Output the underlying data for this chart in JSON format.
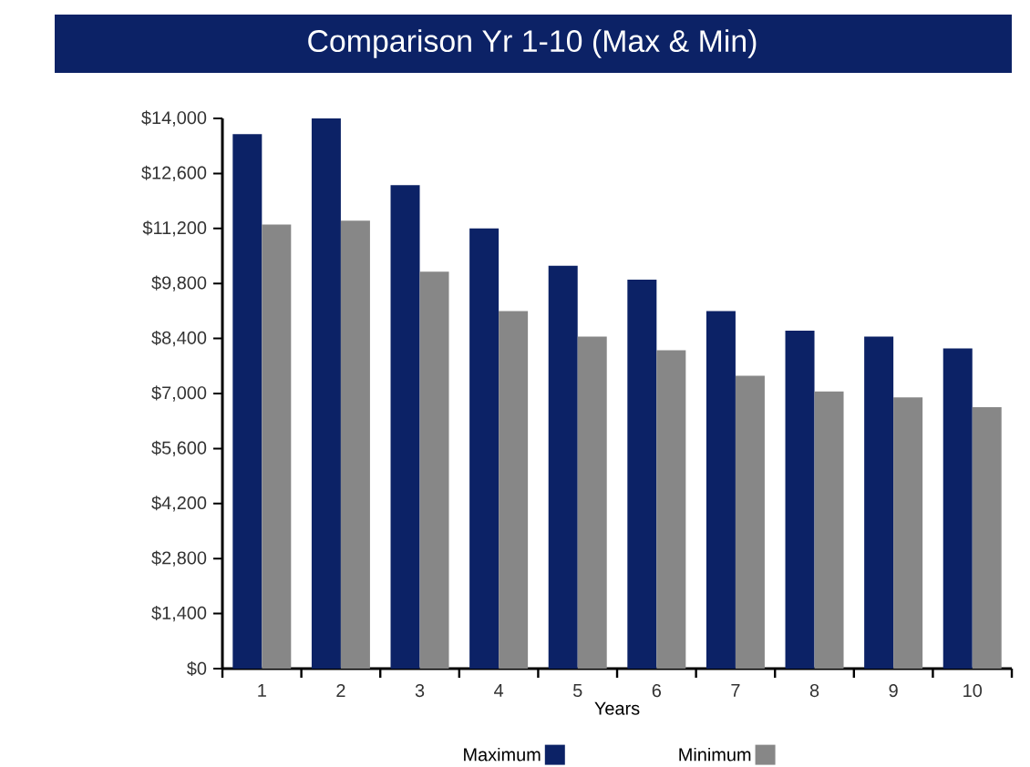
{
  "chart_data": {
    "type": "bar",
    "title": "Comparison Yr 1-10 (Max & Min)",
    "xlabel": "Years",
    "categories": [
      "1",
      "2",
      "3",
      "4",
      "5",
      "6",
      "7",
      "8",
      "9",
      "10"
    ],
    "series": [
      {
        "name": "Maximum",
        "color": "#0c2266",
        "values": [
          13600,
          14000,
          12300,
          11200,
          10250,
          9900,
          9100,
          8600,
          8450,
          8150
        ]
      },
      {
        "name": "Minimum",
        "color": "#878787",
        "values": [
          11300,
          11400,
          10100,
          9100,
          8450,
          8100,
          7450,
          7050,
          6900,
          6650
        ]
      }
    ],
    "ylim": [
      0,
      14000
    ],
    "yticks": [
      {
        "value": 0,
        "label": "$0"
      },
      {
        "value": 1400,
        "label": "$1,400"
      },
      {
        "value": 2800,
        "label": "$2,800"
      },
      {
        "value": 4200,
        "label": "$4,200"
      },
      {
        "value": 5600,
        "label": "$5,600"
      },
      {
        "value": 7000,
        "label": "$7,000"
      },
      {
        "value": 8400,
        "label": "$8,400"
      },
      {
        "value": 9800,
        "label": "$9,800"
      },
      {
        "value": 11200,
        "label": "$11,200"
      },
      {
        "value": 12600,
        "label": "$12,600"
      },
      {
        "value": 14000,
        "label": "$14,000"
      }
    ],
    "legend": "bottom",
    "grid": false
  }
}
